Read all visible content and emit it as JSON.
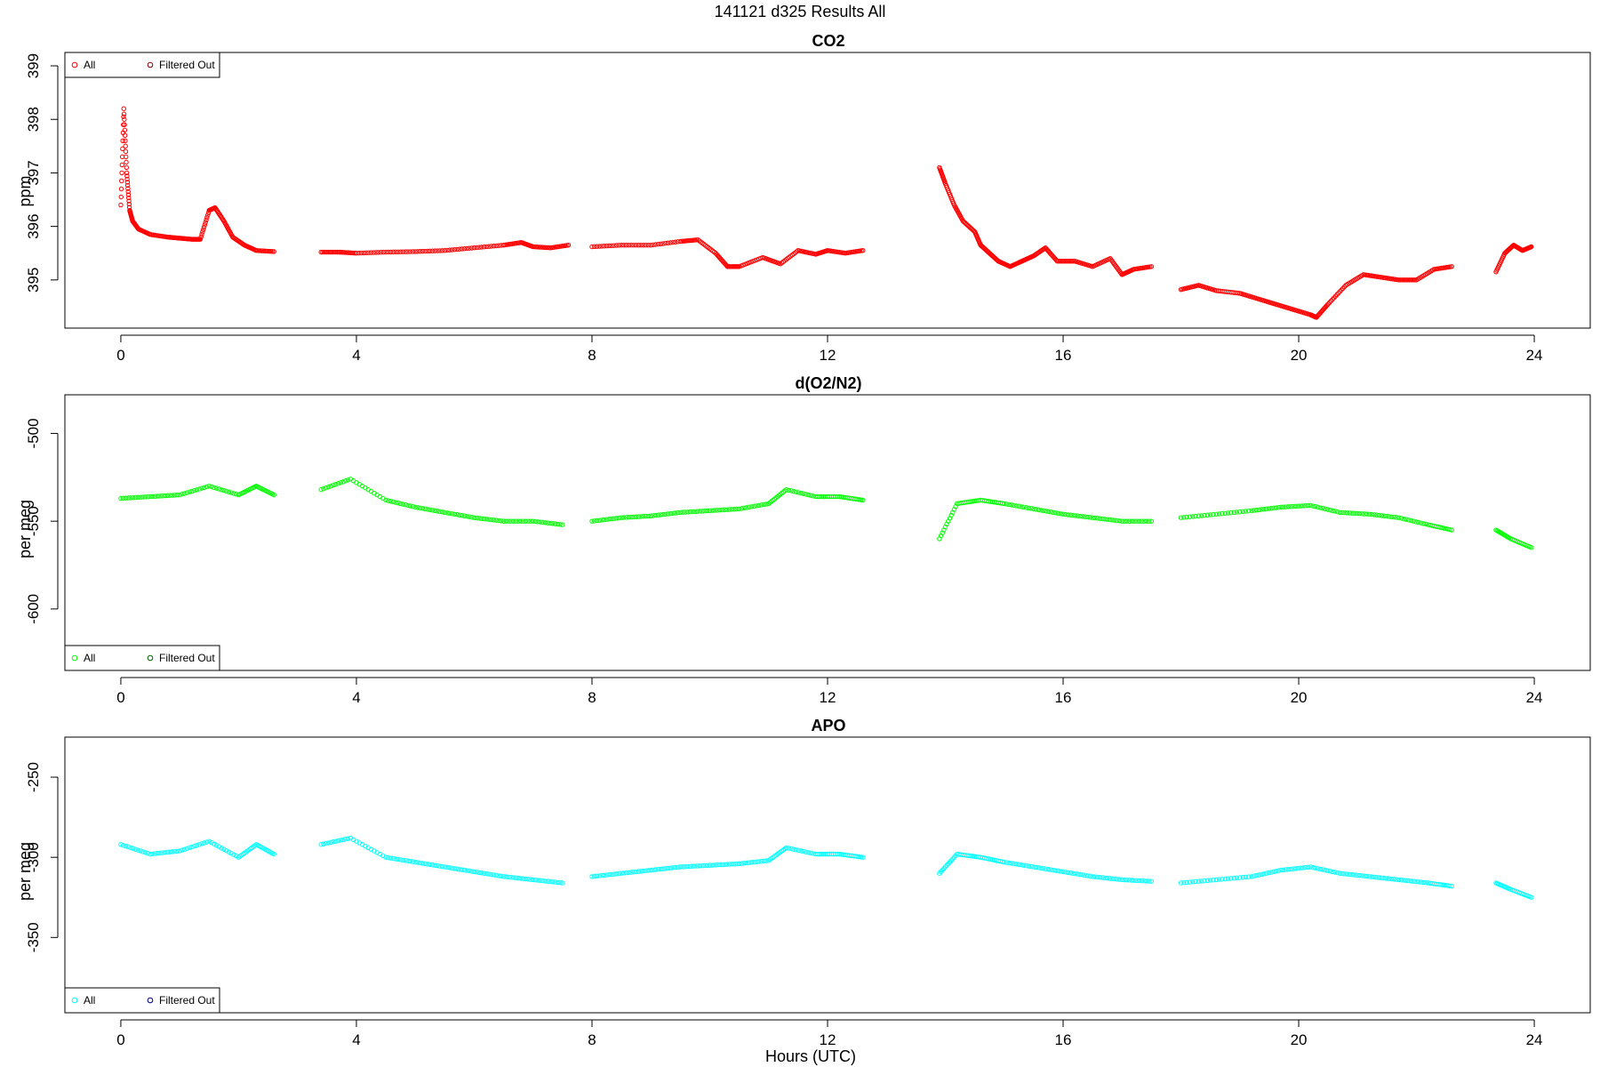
{
  "figure": {
    "title": "141121   d325   Results All",
    "xlabel": "Hours (UTC)"
  },
  "chart_data": [
    {
      "type": "scatter",
      "title": "CO2",
      "xlabel": "",
      "ylabel": "ppm",
      "xlim": [
        -0.95,
        24.95
      ],
      "ylim": [
        394.1,
        399.25
      ],
      "xticks": [
        0,
        4,
        8,
        12,
        16,
        20,
        24
      ],
      "yticks": [
        395,
        396,
        397,
        398,
        399
      ],
      "legend": {
        "position": "top-left",
        "labels": [
          "All",
          "Filtered Out"
        ]
      },
      "series": [
        {
          "name": "All",
          "color": "#ff0000",
          "segments": [
            {
              "x": [
                0.0,
                0.05,
                0.1,
                0.15,
                0.2,
                0.3,
                0.5,
                0.8,
                1.0,
                1.2,
                1.35,
                1.5,
                1.6,
                1.75,
                1.9,
                2.1,
                2.3,
                2.6
              ],
              "y": [
                396.4,
                398.2,
                397.0,
                396.3,
                396.1,
                395.95,
                395.85,
                395.8,
                395.78,
                395.76,
                395.76,
                396.3,
                396.35,
                396.1,
                395.8,
                395.65,
                395.55,
                395.53
              ]
            },
            {
              "x": [
                3.4,
                3.7,
                4.0,
                4.5,
                5.0,
                5.5,
                6.0,
                6.5,
                6.8,
                7.0,
                7.3,
                7.6
              ],
              "y": [
                395.52,
                395.52,
                395.5,
                395.52,
                395.53,
                395.55,
                395.6,
                395.65,
                395.7,
                395.62,
                395.6,
                395.65
              ]
            },
            {
              "x": [
                8.0,
                8.5,
                9.0,
                9.5,
                9.8,
                10.1,
                10.3,
                10.5,
                10.9,
                11.2,
                11.5,
                11.8,
                12.0,
                12.3,
                12.6
              ],
              "y": [
                395.62,
                395.65,
                395.65,
                395.72,
                395.75,
                395.5,
                395.25,
                395.25,
                395.42,
                395.3,
                395.55,
                395.48,
                395.55,
                395.5,
                395.55
              ]
            },
            {
              "x": [
                13.9,
                14.0,
                14.15,
                14.3,
                14.5,
                14.6,
                14.75,
                14.9,
                15.1,
                15.3,
                15.5,
                15.7,
                15.9,
                16.2,
                16.5,
                16.8,
                17.0,
                17.2,
                17.5
              ],
              "y": [
                397.1,
                396.8,
                396.4,
                396.1,
                395.9,
                395.65,
                395.5,
                395.35,
                395.25,
                395.35,
                395.45,
                395.6,
                395.35,
                395.35,
                395.25,
                395.4,
                395.1,
                395.2,
                395.25
              ]
            },
            {
              "x": [
                18.0,
                18.3,
                18.6,
                19.0,
                19.3,
                19.6,
                19.9,
                20.2,
                20.3,
                20.5,
                20.8,
                21.1,
                21.4,
                21.7,
                22.0,
                22.3,
                22.6
              ],
              "y": [
                394.82,
                394.9,
                394.8,
                394.75,
                394.65,
                394.55,
                394.45,
                394.35,
                394.3,
                394.55,
                394.9,
                395.1,
                395.05,
                395.0,
                395.0,
                395.2,
                395.25
              ]
            },
            {
              "x": [
                23.35,
                23.5,
                23.65,
                23.8,
                23.95
              ],
              "y": [
                395.15,
                395.5,
                395.65,
                395.55,
                395.62
              ]
            }
          ]
        }
      ]
    },
    {
      "type": "scatter",
      "title": "d(O2/N2)",
      "xlabel": "",
      "ylabel": "per meg",
      "xlim": [
        -0.95,
        24.95
      ],
      "ylim": [
        -635,
        -478
      ],
      "xticks": [
        0,
        4,
        8,
        12,
        16,
        20,
        24
      ],
      "yticks": [
        -500,
        -550,
        -600
      ],
      "legend": {
        "position": "bottom-left",
        "labels": [
          "All",
          "Filtered Out"
        ]
      },
      "series": [
        {
          "name": "All",
          "color": "#00ff00",
          "segments": [
            {
              "x": [
                0.0,
                0.5,
                1.0,
                1.5,
                2.0,
                2.3,
                2.6
              ],
              "y": [
                -537,
                -536,
                -535,
                -530,
                -535,
                -530,
                -535
              ]
            },
            {
              "x": [
                3.4,
                3.9,
                4.5,
                5.0,
                5.5,
                6.0,
                6.5,
                7.0,
                7.5
              ],
              "y": [
                -532,
                -526,
                -538,
                -542,
                -545,
                -548,
                -550,
                -550,
                -552
              ]
            },
            {
              "x": [
                8.0,
                8.5,
                9.0,
                9.5,
                10.0,
                10.5,
                11.0,
                11.3,
                11.8,
                12.2,
                12.6
              ],
              "y": [
                -550,
                -548,
                -547,
                -545,
                -544,
                -543,
                -540,
                -532,
                -536,
                -536,
                -538
              ]
            },
            {
              "x": [
                13.9,
                14.2,
                14.6,
                15.0,
                15.5,
                16.0,
                16.5,
                17.0,
                17.5
              ],
              "y": [
                -560,
                -540,
                -538,
                -540,
                -543,
                -546,
                -548,
                -550,
                -550
              ]
            },
            {
              "x": [
                18.0,
                18.6,
                19.2,
                19.7,
                20.2,
                20.7,
                21.2,
                21.7,
                22.2,
                22.6
              ],
              "y": [
                -548,
                -546,
                -544,
                -542,
                -541,
                -545,
                -546,
                -548,
                -552,
                -555
              ]
            },
            {
              "x": [
                23.35,
                23.6,
                23.95
              ],
              "y": [
                -555,
                -560,
                -565
              ]
            }
          ]
        }
      ]
    },
    {
      "type": "scatter",
      "title": "APO",
      "xlabel": "Hours (UTC)",
      "ylabel": "per meg",
      "xlim": [
        -0.95,
        24.95
      ],
      "ylim": [
        -397,
        -225
      ],
      "xticks": [
        0,
        4,
        8,
        12,
        16,
        20,
        24
      ],
      "yticks": [
        -250,
        -300,
        -350
      ],
      "legend": {
        "position": "bottom-left",
        "labels": [
          "All",
          "Filtered Out"
        ]
      },
      "series": [
        {
          "name": "All",
          "color": "#00ffff",
          "segments": [
            {
              "x": [
                0.0,
                0.5,
                1.0,
                1.5,
                2.0,
                2.3,
                2.6
              ],
              "y": [
                -292,
                -298,
                -296,
                -290,
                -300,
                -292,
                -298
              ]
            },
            {
              "x": [
                3.4,
                3.9,
                4.5,
                5.0,
                5.5,
                6.0,
                6.5,
                7.0,
                7.5
              ],
              "y": [
                -292,
                -288,
                -300,
                -303,
                -306,
                -309,
                -312,
                -314,
                -316
              ]
            },
            {
              "x": [
                8.0,
                8.5,
                9.0,
                9.5,
                10.0,
                10.5,
                11.0,
                11.3,
                11.8,
                12.2,
                12.6
              ],
              "y": [
                -312,
                -310,
                -308,
                -306,
                -305,
                -304,
                -302,
                -294,
                -298,
                -298,
                -300
              ]
            },
            {
              "x": [
                13.9,
                14.2,
                14.6,
                15.0,
                15.5,
                16.0,
                16.5,
                17.0,
                17.5
              ],
              "y": [
                -310,
                -298,
                -300,
                -303,
                -306,
                -309,
                -312,
                -314,
                -315
              ]
            },
            {
              "x": [
                18.0,
                18.6,
                19.2,
                19.7,
                20.2,
                20.7,
                21.2,
                21.7,
                22.2,
                22.6
              ],
              "y": [
                -316,
                -314,
                -312,
                -308,
                -306,
                -310,
                -312,
                -314,
                -316,
                -318
              ]
            },
            {
              "x": [
                23.35,
                23.6,
                23.95
              ],
              "y": [
                -316,
                -320,
                -325
              ]
            }
          ]
        }
      ]
    }
  ]
}
